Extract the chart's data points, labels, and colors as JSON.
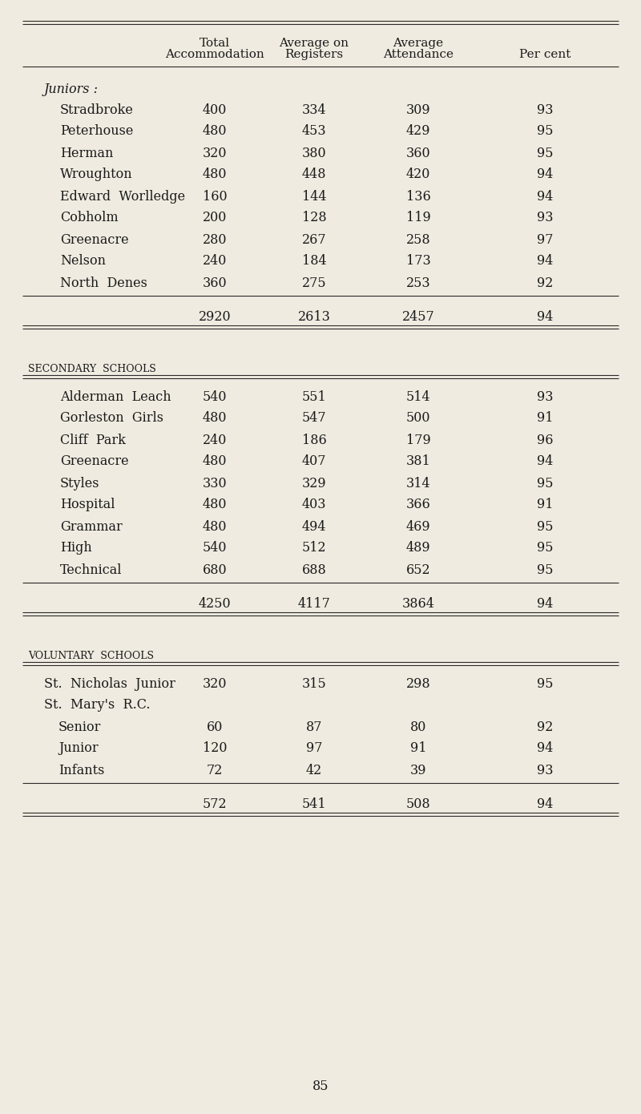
{
  "bg_color": "#f0ebe0",
  "text_color": "#1a1a1a",
  "sections": [
    {
      "section_label": "Juniors :",
      "italic": true,
      "rows": [
        {
          "name": "Stradbroke",
          "indent": 0,
          "values": [
            "400",
            "334",
            "309",
            "93"
          ]
        },
        {
          "name": "Peterhouse",
          "indent": 0,
          "values": [
            "480",
            "453",
            "429",
            "95"
          ]
        },
        {
          "name": "Herman",
          "indent": 0,
          "values": [
            "320",
            "380",
            "360",
            "95"
          ]
        },
        {
          "name": "Wroughton",
          "indent": 0,
          "values": [
            "480",
            "448",
            "420",
            "94"
          ]
        },
        {
          "name": "Edward  Worlledge",
          "indent": 0,
          "values": [
            "160",
            "144",
            "136",
            "94"
          ]
        },
        {
          "name": "Cobholm",
          "indent": 0,
          "values": [
            "200",
            "128",
            "119",
            "93"
          ]
        },
        {
          "name": "Greenacre",
          "indent": 0,
          "values": [
            "280",
            "267",
            "258",
            "97"
          ]
        },
        {
          "name": "Nelson",
          "indent": 0,
          "values": [
            "240",
            "184",
            "173",
            "94"
          ]
        },
        {
          "name": "North  Denes",
          "indent": 0,
          "values": [
            "360",
            "275",
            "253",
            "92"
          ]
        }
      ],
      "total": [
        "2920",
        "2613",
        "2457",
        "94"
      ]
    },
    {
      "section_label": "SECONDARY  SCHOOLS",
      "italic": false,
      "rows": [
        {
          "name": "Alderman  Leach",
          "indent": 0,
          "values": [
            "540",
            "551",
            "514",
            "93"
          ]
        },
        {
          "name": "Gorleston  Girls",
          "indent": 0,
          "values": [
            "480",
            "547",
            "500",
            "91"
          ]
        },
        {
          "name": "Cliff  Park",
          "indent": 0,
          "values": [
            "240",
            "186",
            "179",
            "96"
          ]
        },
        {
          "name": "Greenacre",
          "indent": 0,
          "values": [
            "480",
            "407",
            "381",
            "94"
          ]
        },
        {
          "name": "Styles",
          "indent": 0,
          "values": [
            "330",
            "329",
            "314",
            "95"
          ]
        },
        {
          "name": "Hospital",
          "indent": 0,
          "values": [
            "480",
            "403",
            "366",
            "91"
          ]
        },
        {
          "name": "Grammar",
          "indent": 0,
          "values": [
            "480",
            "494",
            "469",
            "95"
          ]
        },
        {
          "name": "High",
          "indent": 0,
          "values": [
            "540",
            "512",
            "489",
            "95"
          ]
        },
        {
          "name": "Technical",
          "indent": 0,
          "values": [
            "680",
            "688",
            "652",
            "95"
          ]
        }
      ],
      "total": [
        "4250",
        "4117",
        "3864",
        "94"
      ]
    },
    {
      "section_label": "VOLUNTARY  SCHOOLS",
      "italic": false,
      "rows": [
        {
          "name": "St.  Nicholas  Junior",
          "indent": 0,
          "values": [
            "320",
            "315",
            "298",
            "95"
          ]
        },
        {
          "name": "St.  Mary's  R.C.",
          "indent": 0,
          "values": [
            "",
            "",
            "",
            ""
          ]
        },
        {
          "name": "Senior",
          "indent": 1,
          "values": [
            "60",
            "87",
            "80",
            "92"
          ]
        },
        {
          "name": "Junior",
          "indent": 1,
          "values": [
            "120",
            "97",
            "91",
            "94"
          ]
        },
        {
          "name": "Infants",
          "indent": 1,
          "values": [
            "72",
            "42",
            "39",
            "93"
          ]
        }
      ],
      "total": [
        "572",
        "541",
        "508",
        "94"
      ]
    }
  ],
  "page_number": "85",
  "header_col1": "Total",
  "header_col1b": "Accommodation",
  "header_col2": "Average on",
  "header_col2b": "Registers",
  "header_col3": "Average",
  "header_col3b": "Attendance",
  "header_col4": "Per cent"
}
